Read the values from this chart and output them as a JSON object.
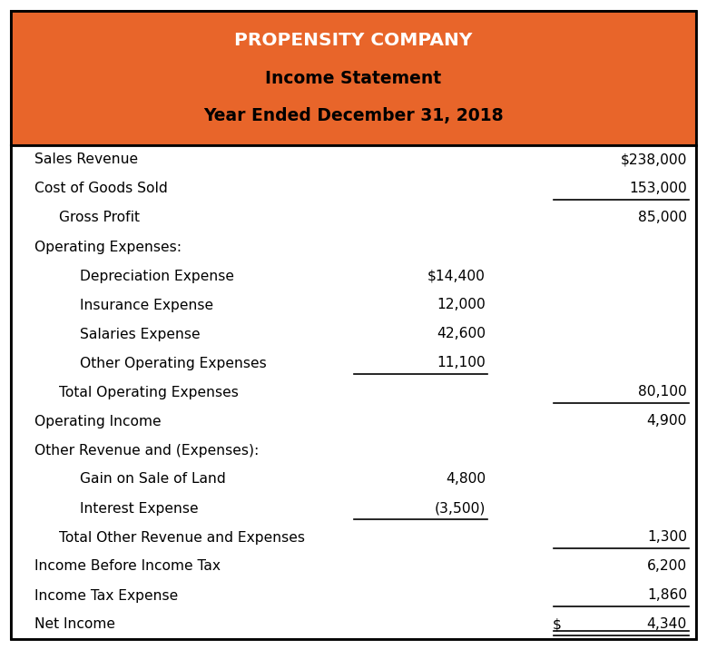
{
  "title_line1": "PROPENSITY COMPANY",
  "title_line2": "Income Statement",
  "title_line3": "Year Ended December 31, 2018",
  "header_bg_color": "#E8652A",
  "title_line1_color": "#FFFFFF",
  "title_line23_color": "#000000",
  "body_bg_color": "#FFFFFF",
  "border_color": "#000000",
  "rows": [
    {
      "label": "Sales Revenue",
      "indent": 0,
      "col1": "",
      "col2": "$238,000",
      "ul1": false,
      "ul2": false,
      "double2": false
    },
    {
      "label": "Cost of Goods Sold",
      "indent": 0,
      "col1": "",
      "col2": "153,000",
      "ul1": false,
      "ul2": true,
      "double2": false
    },
    {
      "label": "   Gross Profit",
      "indent": 1,
      "col1": "",
      "col2": "85,000",
      "ul1": false,
      "ul2": false,
      "double2": false
    },
    {
      "label": "Operating Expenses:",
      "indent": 0,
      "col1": "",
      "col2": "",
      "ul1": false,
      "ul2": false,
      "double2": false
    },
    {
      "label": "   Depreciation Expense",
      "indent": 2,
      "col1": "$14,400",
      "col2": "",
      "ul1": false,
      "ul2": false,
      "double2": false
    },
    {
      "label": "   Insurance Expense",
      "indent": 2,
      "col1": "12,000",
      "col2": "",
      "ul1": false,
      "ul2": false,
      "double2": false
    },
    {
      "label": "   Salaries Expense",
      "indent": 2,
      "col1": "42,600",
      "col2": "",
      "ul1": false,
      "ul2": false,
      "double2": false
    },
    {
      "label": "   Other Operating Expenses",
      "indent": 2,
      "col1": "11,100",
      "col2": "",
      "ul1": true,
      "ul2": false,
      "double2": false
    },
    {
      "label": "   Total Operating Expenses",
      "indent": 1,
      "col1": "",
      "col2": "80,100",
      "ul1": false,
      "ul2": true,
      "double2": false
    },
    {
      "label": "Operating Income",
      "indent": 0,
      "col1": "",
      "col2": "4,900",
      "ul1": false,
      "ul2": false,
      "double2": false
    },
    {
      "label": "Other Revenue and (Expenses):",
      "indent": 0,
      "col1": "",
      "col2": "",
      "ul1": false,
      "ul2": false,
      "double2": false
    },
    {
      "label": "   Gain on Sale of Land",
      "indent": 2,
      "col1": "4,800",
      "col2": "",
      "ul1": false,
      "ul2": false,
      "double2": false
    },
    {
      "label": "   Interest Expense",
      "indent": 2,
      "col1": "(3,500)",
      "col2": "",
      "ul1": true,
      "ul2": false,
      "double2": false
    },
    {
      "label": "   Total Other Revenue and Expenses",
      "indent": 1,
      "col1": "",
      "col2": "1,300",
      "ul1": false,
      "ul2": true,
      "double2": false
    },
    {
      "label": "Income Before Income Tax",
      "indent": 0,
      "col1": "",
      "col2": "6,200",
      "ul1": false,
      "ul2": false,
      "double2": false
    },
    {
      "label": "Income Tax Expense",
      "indent": 0,
      "col1": "",
      "col2": "1,860",
      "ul1": false,
      "ul2": true,
      "double2": false
    },
    {
      "label": "Net Income",
      "indent": 0,
      "col1": "$",
      "col2": "4,340",
      "ul1": false,
      "ul2": true,
      "double2": true
    }
  ],
  "figsize": [
    7.79,
    7.16
  ],
  "dpi": 100
}
